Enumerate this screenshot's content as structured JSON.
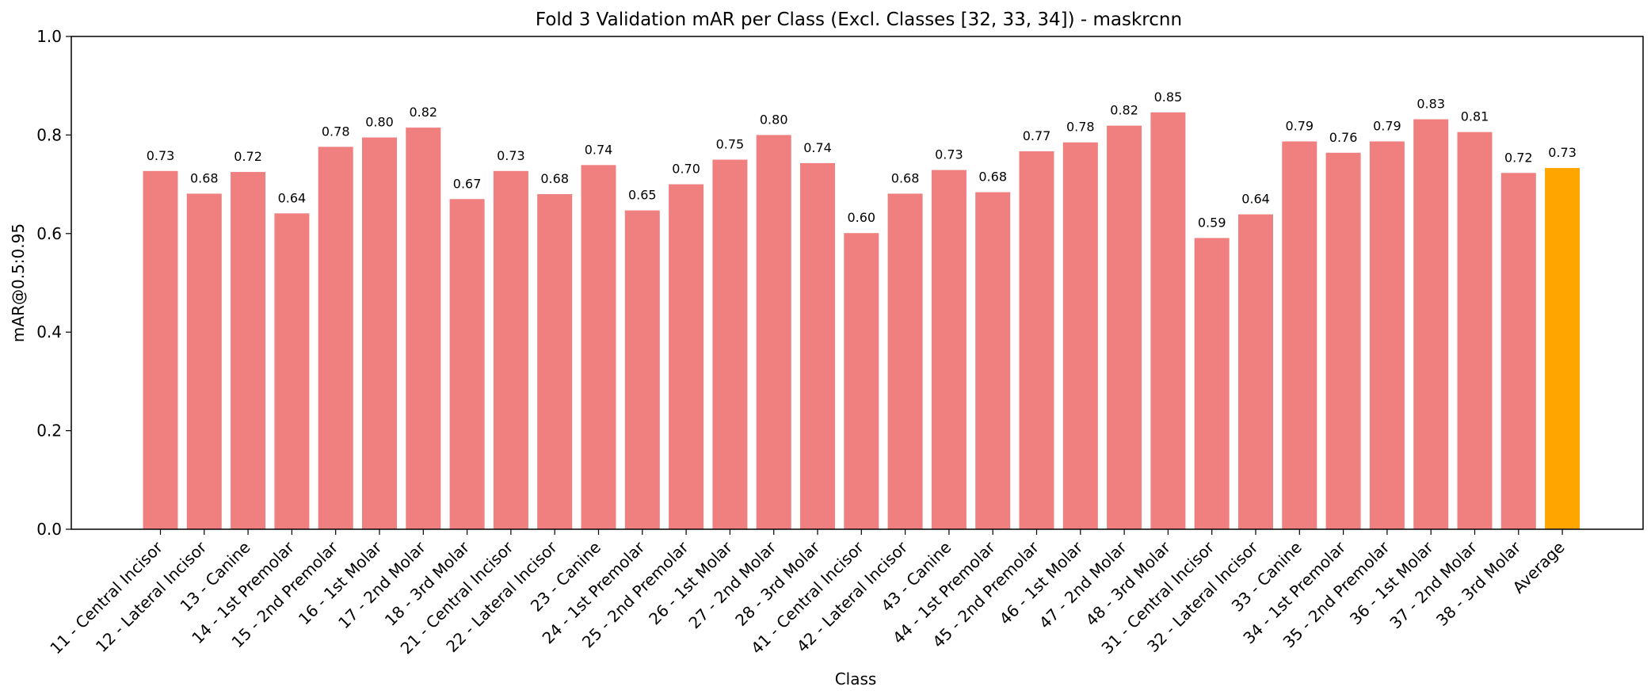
{
  "chart_data": {
    "type": "bar",
    "title": "Fold 3 Validation mAR per Class (Excl. Classes [32, 33, 34]) - maskrcnn",
    "xlabel": "Class",
    "ylabel": "mAR@0.5:0.95",
    "ylim": [
      0,
      1.0
    ],
    "yticks": [
      "0.0",
      "0.2",
      "0.4",
      "0.6",
      "0.8",
      "1.0"
    ],
    "grid": false,
    "categories": [
      "11 - Central Incisor",
      "12 - Lateral Incisor",
      "13 - Canine",
      "14 - 1st Premolar",
      "15 - 2nd Premolar",
      "16 - 1st Molar",
      "17 - 2nd Molar",
      "18 - 3rd Molar",
      "21 - Central Incisor",
      "22 - Lateral Incisor",
      "23 - Canine",
      "24 - 1st Premolar",
      "25 - 2nd Premolar",
      "26 - 1st Molar",
      "27 - 2nd Molar",
      "28 - 3rd Molar",
      "41 - Central Incisor",
      "42 - Lateral Incisor",
      "43 - Canine",
      "44 - 1st Premolar",
      "45 - 2nd Premolar",
      "46 - 1st Molar",
      "47 - 2nd Molar",
      "48 - 3rd Molar",
      "31 - Central Incisor",
      "32 - Lateral Incisor",
      "33 - Canine",
      "34 - 1st Premolar",
      "35 - 2nd Premolar",
      "36 - 1st Molar",
      "37 - 2nd Molar",
      "38 - 3rd Molar",
      "Average"
    ],
    "values": [
      0.727,
      0.681,
      0.725,
      0.641,
      0.776,
      0.795,
      0.815,
      0.67,
      0.727,
      0.68,
      0.739,
      0.647,
      0.7,
      0.75,
      0.8,
      0.743,
      0.601,
      0.681,
      0.729,
      0.684,
      0.767,
      0.785,
      0.819,
      0.846,
      0.591,
      0.639,
      0.787,
      0.764,
      0.787,
      0.832,
      0.806,
      0.723,
      0.733
    ],
    "value_labels": [
      "0.73",
      "0.68",
      "0.72",
      "0.64",
      "0.78",
      "0.80",
      "0.82",
      "0.67",
      "0.73",
      "0.68",
      "0.74",
      "0.65",
      "0.70",
      "0.75",
      "0.80",
      "0.74",
      "0.60",
      "0.68",
      "0.73",
      "0.68",
      "0.77",
      "0.78",
      "0.82",
      "0.85",
      "0.59",
      "0.64",
      "0.79",
      "0.76",
      "0.79",
      "0.83",
      "0.81",
      "0.72",
      "0.73"
    ],
    "colors": {
      "bar": "#f08080",
      "average_bar": "#ffa500"
    }
  }
}
